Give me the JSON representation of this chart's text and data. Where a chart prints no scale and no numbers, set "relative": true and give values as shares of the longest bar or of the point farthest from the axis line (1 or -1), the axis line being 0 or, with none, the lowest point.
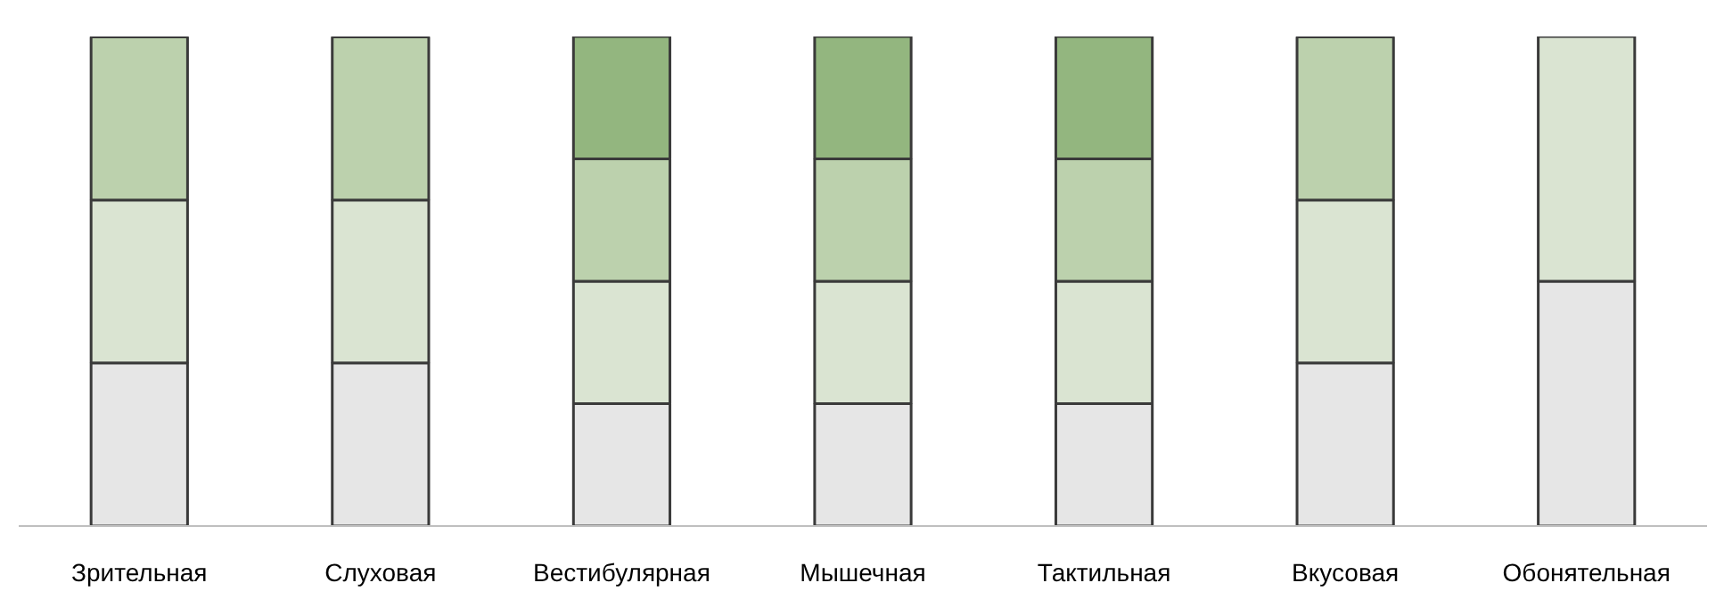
{
  "chart_data": {
    "type": "bar",
    "stacked": true,
    "relative": true,
    "grid": false,
    "categories": [
      "Зрительная",
      "Слуховая",
      "Вестибулярная",
      "Мышечная",
      "Тактильная",
      "Вкусовая",
      "Обонятельная"
    ],
    "series": [
      {
        "color": "#e6e6e6",
        "values": [
          0.333,
          0.333,
          0.25,
          0.25,
          0.25,
          0.333,
          0.5
        ]
      },
      {
        "color": "#dae4d2",
        "values": [
          0.333,
          0.333,
          0.25,
          0.25,
          0.25,
          0.333,
          0.5
        ]
      },
      {
        "color": "#bcd1ad",
        "values": [
          0.333,
          0.333,
          0.25,
          0.25,
          0.25,
          0.333,
          null
        ]
      },
      {
        "color": "#93b67f",
        "values": [
          null,
          null,
          0.25,
          0.25,
          0.25,
          null,
          null
        ]
      }
    ]
  }
}
